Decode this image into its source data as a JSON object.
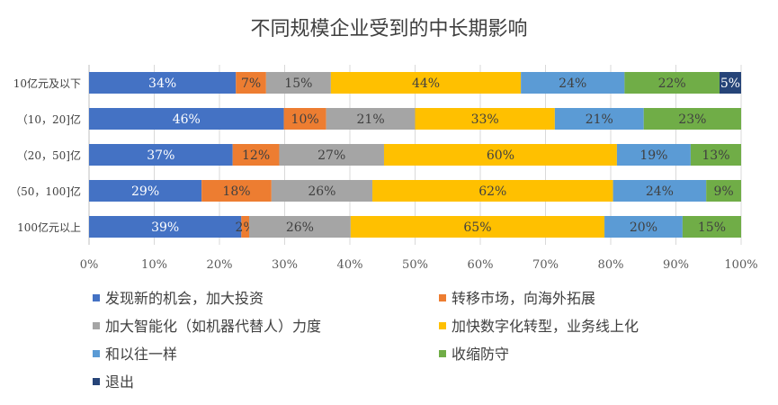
{
  "chart_data": {
    "type": "bar",
    "orientation": "horizontal",
    "stacked": "percent",
    "title": "不同规模企业受到的中长期影响",
    "categories": [
      "10亿元及以下",
      "（10，20]亿",
      "（20，50]亿",
      "（50，100]亿",
      "100亿元以上"
    ],
    "series": [
      {
        "name": "发现新的机会，加大投资",
        "color": "#4472C4",
        "values": [
          34,
          46,
          37,
          29,
          39
        ]
      },
      {
        "name": "转移市场，向海外拓展",
        "color": "#ED7D31",
        "values": [
          7,
          10,
          12,
          18,
          2
        ]
      },
      {
        "name": "加大智能化（如机器代替人）力度",
        "color": "#A5A5A5",
        "values": [
          15,
          21,
          27,
          26,
          26
        ]
      },
      {
        "name": "加快数字化转型，业务线上化",
        "color": "#FFC000",
        "values": [
          44,
          33,
          60,
          62,
          65
        ]
      },
      {
        "name": "和以往一样",
        "color": "#5B9BD5",
        "values": [
          24,
          21,
          19,
          24,
          20
        ]
      },
      {
        "name": "收缩防守",
        "color": "#70AD47",
        "values": [
          22,
          23,
          13,
          9,
          15
        ]
      },
      {
        "name": "退出",
        "color": "#264478",
        "values": [
          5,
          0,
          0,
          0,
          0
        ]
      }
    ],
    "xlim": [
      0,
      100
    ],
    "xticks": [
      "0%",
      "10%",
      "20%",
      "30%",
      "40%",
      "50%",
      "60%",
      "70%",
      "80%",
      "90%",
      "100%"
    ],
    "grid": true,
    "legend_position": "bottom"
  }
}
